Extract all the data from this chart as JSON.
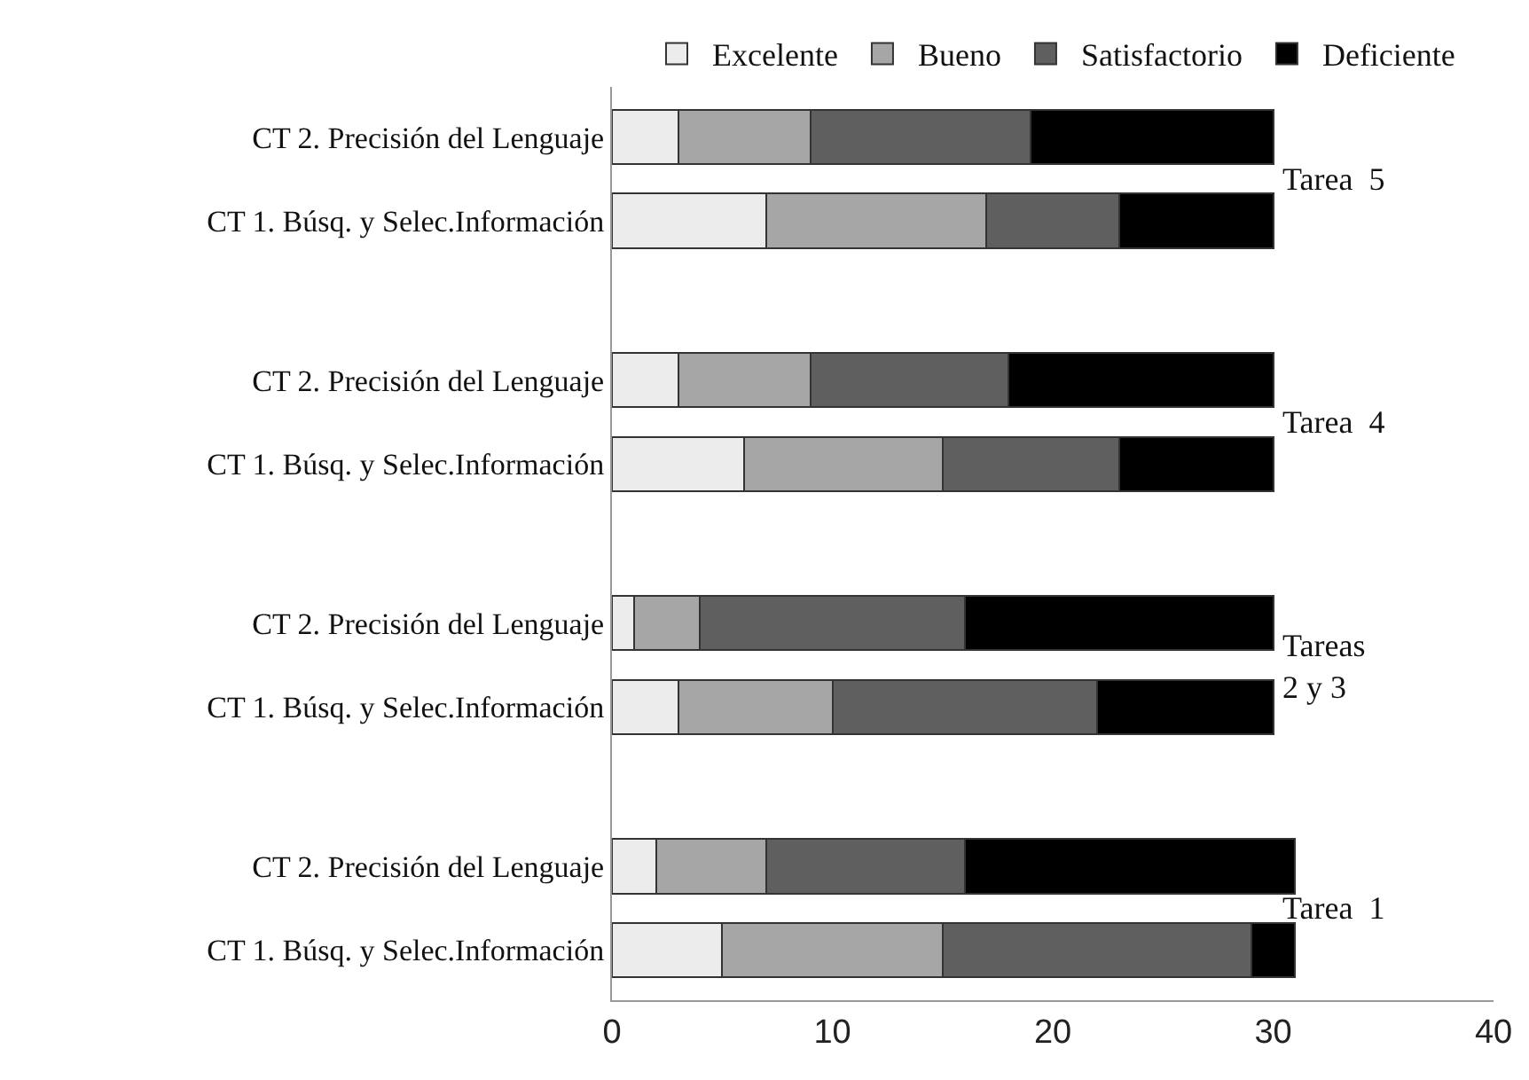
{
  "chart_data": {
    "type": "bar",
    "orientation": "horizontal",
    "stacked": true,
    "categories": [
      "CT 2. Precisión del Lenguaje",
      "CT 1. Búsq. y Selec.Información",
      "CT 2. Precisión del Lenguaje",
      "CT 1. Búsq. y Selec.Información",
      "CT 2. Precisión del Lenguaje",
      "CT 1. Búsq. y Selec.Información",
      "CT 2. Precisión del Lenguaje",
      "CT 1. Búsq. y Selec.Información"
    ],
    "series": [
      {
        "name": "Excelente",
        "color": "#ececec",
        "values": [
          3,
          7,
          3,
          6,
          1,
          3,
          2,
          5
        ]
      },
      {
        "name": "Bueno",
        "color": "#a6a6a6",
        "values": [
          6,
          10,
          6,
          9,
          3,
          7,
          5,
          10
        ]
      },
      {
        "name": "Satisfactorio",
        "color": "#5f5f5f",
        "values": [
          10,
          6,
          9,
          8,
          12,
          12,
          9,
          14
        ]
      },
      {
        "name": "Deficiente",
        "color": "#000000",
        "values": [
          11,
          7,
          12,
          7,
          14,
          8,
          15,
          2
        ]
      }
    ],
    "xlim": [
      0,
      40
    ],
    "xticks": [
      0,
      10,
      20,
      30,
      40
    ],
    "grid": false,
    "legend": "top",
    "annotations": [
      "Tarea  5",
      "Tarea  4",
      "Tareas\n2 y 3",
      "Tarea  1"
    ]
  }
}
